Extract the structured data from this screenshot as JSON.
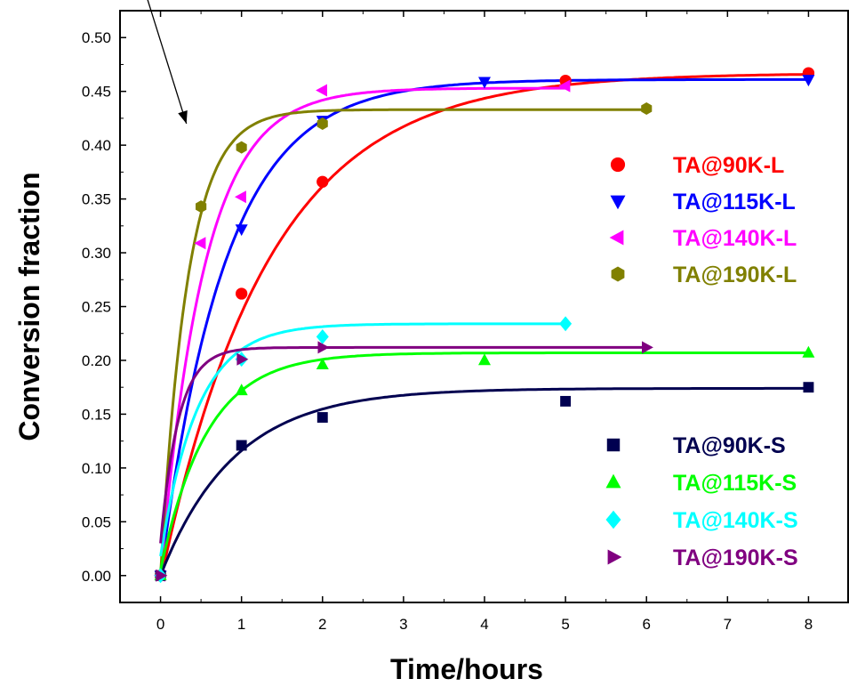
{
  "chart_data": {
    "type": "scatter",
    "xlabel": "Time/hours",
    "ylabel": "Conversion fraction",
    "xlim": [
      -0.5,
      8.5
    ],
    "ylim": [
      -0.025,
      0.525
    ],
    "xticks": [
      0,
      1,
      2,
      3,
      4,
      5,
      6,
      7,
      8
    ],
    "yticks": [
      0.0,
      0.05,
      0.1,
      0.15,
      0.2,
      0.25,
      0.3,
      0.35,
      0.4,
      0.45,
      0.5
    ],
    "xtick_labels": [
      "0",
      "1",
      "2",
      "3",
      "4",
      "5",
      "6",
      "7",
      "8"
    ],
    "ytick_labels": [
      "0.00",
      "0.05",
      "0.10",
      "0.15",
      "0.20",
      "0.25",
      "0.30",
      "0.35",
      "0.40",
      "0.45",
      "0.50"
    ],
    "grid": false,
    "legends": [
      {
        "placement": "upper-right",
        "entries": [
          {
            "name": "TA@90K-L",
            "color": "#ff0000",
            "marker": "circle"
          },
          {
            "name": "TA@115K-L",
            "color": "#0000ff",
            "marker": "triangle-down"
          },
          {
            "name": "TA@140K-L",
            "color": "#ff00ff",
            "marker": "triangle-left"
          },
          {
            "name": "TA@190K-L",
            "color": "#808000",
            "marker": "hexagon"
          }
        ]
      },
      {
        "placement": "lower-right",
        "entries": [
          {
            "name": "TA@90K-S",
            "color": "#000050",
            "marker": "square"
          },
          {
            "name": "TA@115K-S",
            "color": "#00ff00",
            "marker": "triangle-up"
          },
          {
            "name": "TA@140K-S",
            "color": "#00ffff",
            "marker": "diamond"
          },
          {
            "name": "TA@190K-S",
            "color": "#800080",
            "marker": "triangle-right"
          }
        ]
      }
    ],
    "series": [
      {
        "name": "TA@90K-L",
        "color": "#ff0000",
        "marker": "circle",
        "points": [
          [
            0,
            0.0
          ],
          [
            1,
            0.262
          ],
          [
            2,
            0.366
          ],
          [
            5,
            0.46
          ],
          [
            8,
            0.467
          ]
        ],
        "fit": {
          "a": 0.467,
          "k": 0.75,
          "c0": -0.005,
          "x_end": 8
        }
      },
      {
        "name": "TA@115K-L",
        "color": "#0000ff",
        "marker": "triangle-down",
        "points": [
          [
            0,
            0.0
          ],
          [
            1,
            0.322
          ],
          [
            2,
            0.423
          ],
          [
            4,
            0.459
          ],
          [
            8,
            0.461
          ]
        ],
        "fit": {
          "a": 0.461,
          "k": 1.25,
          "c0": 0.0,
          "x_end": 8
        }
      },
      {
        "name": "TA@140K-L",
        "color": "#ff00ff",
        "marker": "triangle-left",
        "points": [
          [
            0,
            0.0
          ],
          [
            0.5,
            0.309
          ],
          [
            1,
            0.352
          ],
          [
            2,
            0.451
          ],
          [
            5,
            0.455
          ]
        ],
        "fit": {
          "a": 0.453,
          "k": 1.85,
          "c0": 0.0,
          "x_end": 5
        }
      },
      {
        "name": "TA@190K-L",
        "color": "#808000",
        "marker": "hexagon",
        "points": [
          [
            0,
            0.0
          ],
          [
            0.5,
            0.343
          ],
          [
            1,
            0.398
          ],
          [
            2,
            0.42
          ],
          [
            6,
            0.434
          ]
        ],
        "fit": {
          "a": 0.433,
          "k": 3.0,
          "c0": 0.0,
          "x_end": 6
        }
      },
      {
        "name": "TA@90K-S",
        "color": "#000050",
        "marker": "square",
        "points": [
          [
            0,
            0.0
          ],
          [
            1,
            0.121
          ],
          [
            2,
            0.147
          ],
          [
            5,
            0.162
          ],
          [
            8,
            0.175
          ]
        ],
        "fit": {
          "a": 0.174,
          "k": 1.1,
          "c0": 0.0,
          "x_end": 8
        }
      },
      {
        "name": "TA@115K-S",
        "color": "#00ff00",
        "marker": "triangle-up",
        "points": [
          [
            0,
            0.0
          ],
          [
            1,
            0.172
          ],
          [
            2,
            0.196
          ],
          [
            4,
            0.2
          ],
          [
            8,
            0.207
          ]
        ],
        "fit": {
          "a": 0.207,
          "k": 1.75,
          "c0": 0.005,
          "x_end": 8
        }
      },
      {
        "name": "TA@140K-S",
        "color": "#00ffff",
        "marker": "diamond",
        "points": [
          [
            0,
            0.0
          ],
          [
            1,
            0.201
          ],
          [
            2,
            0.222
          ],
          [
            5,
            0.234
          ]
        ],
        "fit": {
          "a": 0.234,
          "k": 2.2,
          "c0": 0.018,
          "x_end": 5
        }
      },
      {
        "name": "TA@190K-S",
        "color": "#800080",
        "marker": "triangle-right",
        "points": [
          [
            0,
            0.0
          ],
          [
            1,
            0.201
          ],
          [
            2,
            0.212
          ],
          [
            6,
            0.212
          ]
        ],
        "fit": {
          "a": 0.212,
          "k": 4.5,
          "c0": 0.03,
          "x_end": 6
        }
      }
    ],
    "annotations": [
      {
        "type": "arrow",
        "from": [
          -0.2,
          0.545
        ],
        "to": [
          0.32,
          0.42
        ],
        "color": "#000000"
      }
    ]
  }
}
